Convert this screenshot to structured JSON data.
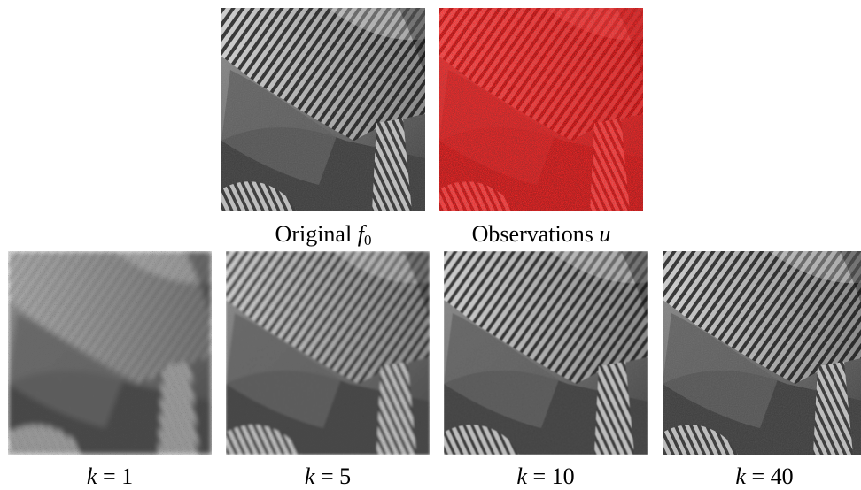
{
  "figure": {
    "top_row": [
      {
        "id": "original",
        "caption_text": "Original ",
        "caption_symbol": "f",
        "caption_subscript": "0",
        "kind": "clean"
      },
      {
        "id": "observations",
        "caption_text": "Observations ",
        "caption_symbol": "u",
        "caption_subscript": "",
        "kind": "noisy",
        "noise_color": "#ff0000"
      }
    ],
    "bottom_row": [
      {
        "id": "k1",
        "caption_var": "k",
        "caption_eq": " = 1",
        "kind": "restored",
        "iteration": 1
      },
      {
        "id": "k5",
        "caption_var": "k",
        "caption_eq": " = 5",
        "kind": "restored",
        "iteration": 5
      },
      {
        "id": "k10",
        "caption_var": "k",
        "caption_eq": " = 10",
        "kind": "restored",
        "iteration": 10
      },
      {
        "id": "k40",
        "caption_var": "k",
        "caption_eq": " = 40",
        "kind": "restored",
        "iteration": 40
      }
    ]
  }
}
